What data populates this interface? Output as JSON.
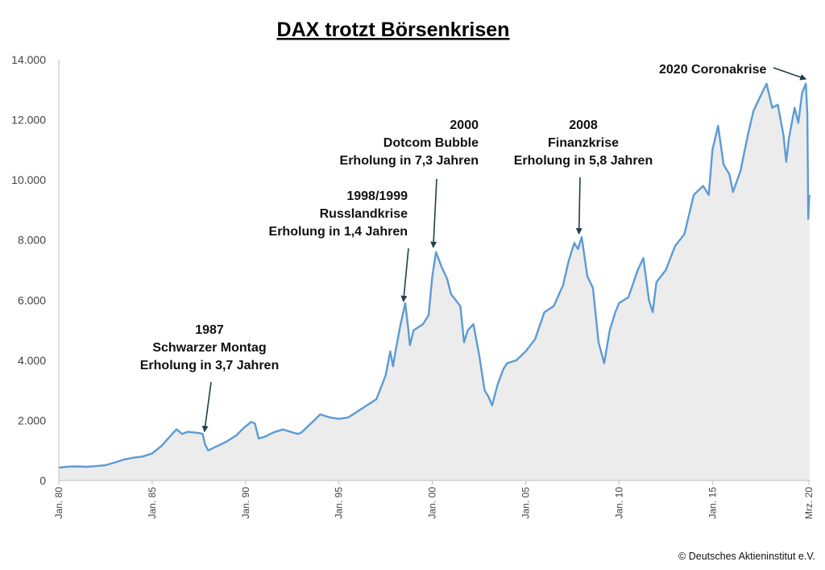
{
  "chart_data": {
    "type": "area",
    "title": "DAX trotzt Börsenkrisen",
    "xlabel": "",
    "ylabel": "",
    "xlim": [
      1980.0,
      2020.25
    ],
    "ylim": [
      0,
      14000
    ],
    "y_ticks": [
      0,
      2000,
      4000,
      6000,
      8000,
      10000,
      12000,
      14000
    ],
    "y_tick_labels": [
      "0",
      "2.000",
      "4.000",
      "6.000",
      "8.000",
      "10.000",
      "12.000",
      "14.000"
    ],
    "x_ticks": [
      1980,
      1985,
      1990,
      1995,
      2000,
      2005,
      2010,
      2015,
      2020.17
    ],
    "x_tick_labels": [
      "Jan. 80",
      "Jan. 85",
      "Jan. 90",
      "Jan. 95",
      "Jan. 00",
      "Jan. 05",
      "Jan. 10",
      "Jan. 15",
      "Mrz. 20"
    ],
    "series": [
      {
        "name": "DAX",
        "color": "#5b9bd5",
        "x": [
          1980.0,
          1980.5,
          1981.0,
          1981.5,
          1982.0,
          1982.5,
          1983.0,
          1983.5,
          1984.0,
          1984.5,
          1985.0,
          1985.5,
          1986.0,
          1986.3,
          1986.6,
          1986.9,
          1987.2,
          1987.5,
          1987.7,
          1987.83,
          1988.0,
          1988.5,
          1989.0,
          1989.5,
          1989.9,
          1990.3,
          1990.5,
          1990.7,
          1991.0,
          1991.5,
          1992.0,
          1992.5,
          1992.8,
          1993.0,
          1993.5,
          1994.0,
          1994.5,
          1995.0,
          1995.5,
          1996.0,
          1996.5,
          1997.0,
          1997.5,
          1997.75,
          1997.9,
          1998.0,
          1998.3,
          1998.55,
          1998.7,
          1998.8,
          1999.0,
          1999.5,
          1999.8,
          2000.0,
          2000.2,
          2000.5,
          2000.8,
          2001.0,
          2001.5,
          2001.7,
          2001.9,
          2002.2,
          2002.5,
          2002.8,
          2003.0,
          2003.2,
          2003.5,
          2003.8,
          2004.0,
          2004.5,
          2005.0,
          2005.5,
          2006.0,
          2006.5,
          2007.0,
          2007.3,
          2007.6,
          2007.8,
          2008.0,
          2008.3,
          2008.6,
          2008.9,
          2009.2,
          2009.5,
          2009.8,
          2010.0,
          2010.5,
          2011.0,
          2011.3,
          2011.6,
          2011.8,
          2012.0,
          2012.5,
          2013.0,
          2013.5,
          2014.0,
          2014.5,
          2014.8,
          2015.0,
          2015.3,
          2015.6,
          2015.9,
          2016.1,
          2016.5,
          2016.9,
          2017.2,
          2017.5,
          2017.9,
          2018.2,
          2018.5,
          2018.8,
          2018.95,
          2019.1,
          2019.4,
          2019.6,
          2019.8,
          2020.0,
          2020.08,
          2020.13,
          2020.17,
          2020.2
        ],
        "values": [
          430,
          460,
          470,
          455,
          480,
          510,
          600,
          700,
          760,
          800,
          900,
          1150,
          1500,
          1700,
          1550,
          1620,
          1600,
          1580,
          1550,
          1200,
          1000,
          1150,
          1300,
          1500,
          1750,
          1950,
          1900,
          1400,
          1450,
          1600,
          1700,
          1600,
          1550,
          1600,
          1900,
          2200,
          2100,
          2050,
          2100,
          2300,
          2500,
          2700,
          3500,
          4300,
          3800,
          4200,
          5200,
          5900,
          5100,
          4500,
          5000,
          5200,
          5500,
          6800,
          7600,
          7100,
          6700,
          6200,
          5800,
          4600,
          5000,
          5200,
          4200,
          3000,
          2800,
          2500,
          3200,
          3700,
          3900,
          4000,
          4300,
          4700,
          5600,
          5800,
          6500,
          7300,
          7900,
          7700,
          8100,
          6800,
          6400,
          4600,
          3900,
          5000,
          5600,
          5900,
          6100,
          7000,
          7400,
          6000,
          5600,
          6600,
          7000,
          7800,
          8200,
          9500,
          9800,
          9500,
          11000,
          11800,
          10500,
          10200,
          9600,
          10300,
          11500,
          12300,
          12700,
          13200,
          12400,
          12500,
          11500,
          10600,
          11400,
          12400,
          11900,
          12900,
          13200,
          12200,
          8700,
          9300,
          9500
        ]
      }
    ],
    "annotations": [
      {
        "id": "ann-1987",
        "lines": [
          "1987",
          "Schwarzer Montag",
          "Erholung in 3,7 Jahren"
        ],
        "x": 1987.8,
        "y": 1520
      },
      {
        "id": "ann-1998",
        "lines": [
          "1998/1999",
          "Russlandkrise",
          "Erholung in 1,4 Jahren"
        ],
        "x": 1998.45,
        "y": 5850
      },
      {
        "id": "ann-2000",
        "lines": [
          "2000",
          "Dotcom Bubble",
          "Erholung in 7,3 Jahren"
        ],
        "x": 2000.05,
        "y": 7650
      },
      {
        "id": "ann-2008",
        "lines": [
          "2008",
          "Finanzkrise",
          "Erholung in 5,8 Jahren"
        ],
        "x": 2007.85,
        "y": 8100
      },
      {
        "id": "ann-2020",
        "lines": [
          "2020 Coronakrise"
        ],
        "x": 2020.0,
        "y": 13250
      }
    ],
    "credit": "© Deutsches Aktieninstitut e.V.",
    "grid": false,
    "legend": "none"
  }
}
